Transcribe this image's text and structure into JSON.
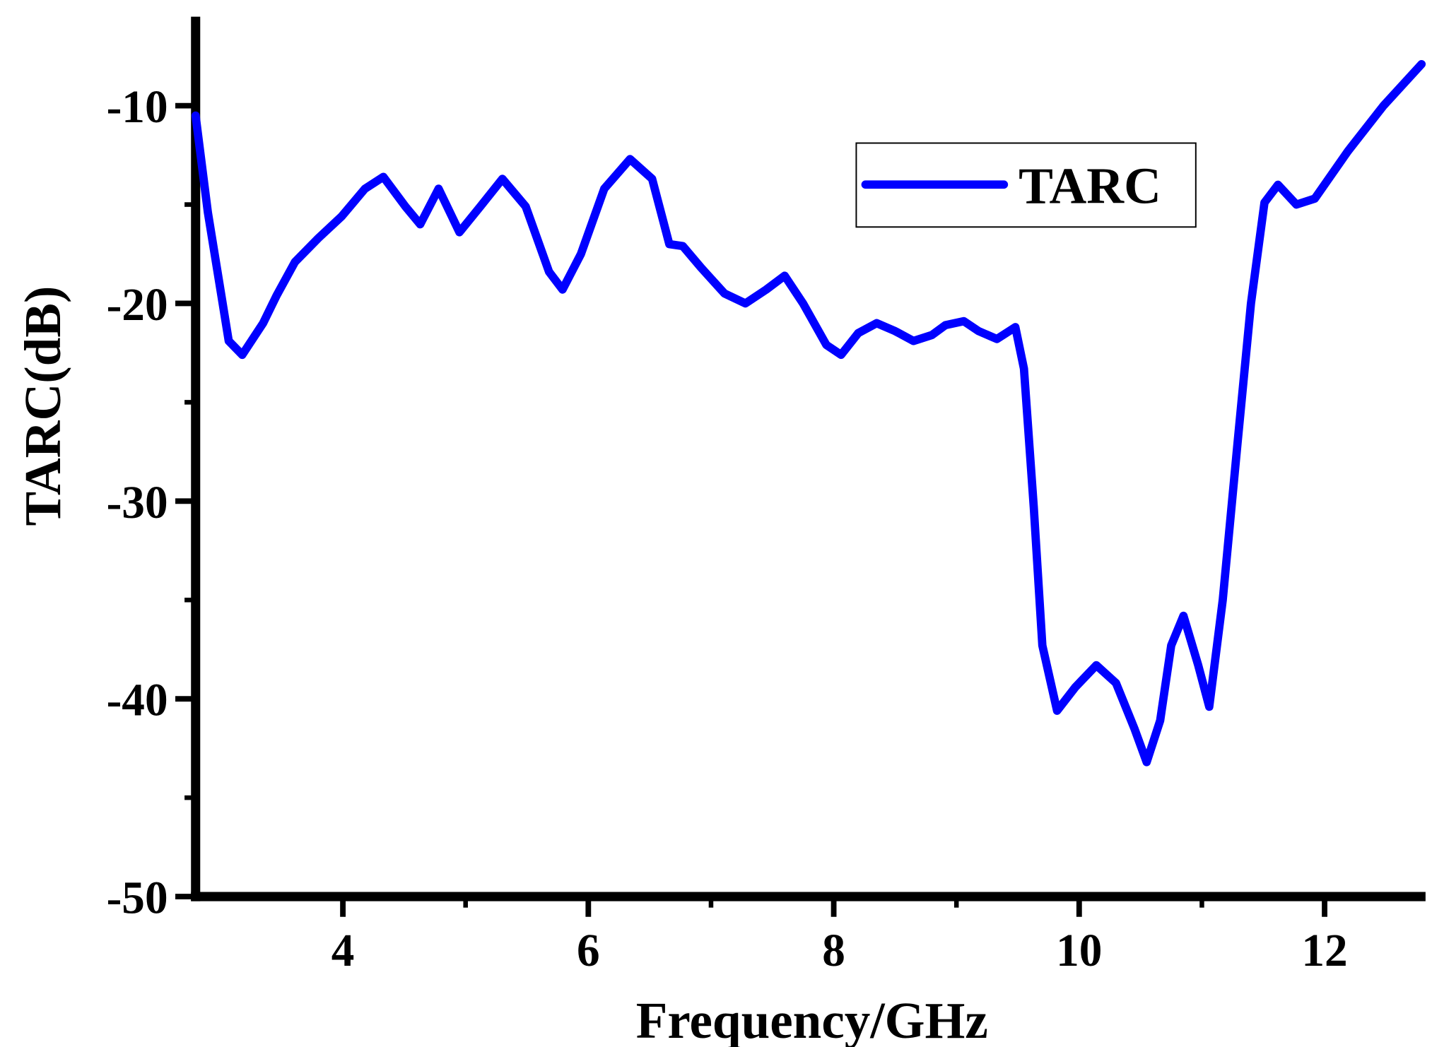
{
  "chart_data": {
    "type": "line",
    "x_label": "Frequency/GHz",
    "y_label": "TARC(dB)",
    "x": [
      2.8,
      2.9,
      3.01,
      3.07,
      3.18,
      3.35,
      3.46,
      3.61,
      3.8,
      3.99,
      4.18,
      4.33,
      4.51,
      4.63,
      4.78,
      4.95,
      5.12,
      5.3,
      5.49,
      5.68,
      5.79,
      5.94,
      6.13,
      6.34,
      6.52,
      6.66,
      6.77,
      6.92,
      7.11,
      7.28,
      7.45,
      7.6,
      7.75,
      7.94,
      8.06,
      8.2,
      8.35,
      8.5,
      8.65,
      8.8,
      8.91,
      9.06,
      9.18,
      9.33,
      9.48,
      9.55,
      9.63,
      9.7,
      9.82,
      9.97,
      10.14,
      10.3,
      10.45,
      10.55,
      10.66,
      10.75,
      10.85,
      10.97,
      11.06,
      11.17,
      11.29,
      11.4,
      11.51,
      11.62,
      11.77,
      11.92,
      12.19,
      12.48,
      12.79
    ],
    "series": [
      {
        "name": "TARC",
        "color": "#0000ff",
        "values": [
          -10.5,
          -15.4,
          -19.6,
          -21.9,
          -22.6,
          -21,
          -19.6,
          -17.9,
          -16.7,
          -15.6,
          -14.2,
          -13.6,
          -15.1,
          -16,
          -14.2,
          -16.4,
          -15.1,
          -13.7,
          -15.1,
          -18.4,
          -19.3,
          -17.5,
          -14.2,
          -12.7,
          -13.7,
          -17,
          -17.1,
          -18.2,
          -19.5,
          -20,
          -19.3,
          -18.6,
          -20,
          -22.1,
          -22.6,
          -21.5,
          -21,
          -21.4,
          -21.9,
          -21.6,
          -21.1,
          -20.9,
          -21.4,
          -21.8,
          -21.2,
          -23.3,
          -30.3,
          -37.3,
          -40.6,
          -39.4,
          -38.3,
          -39.2,
          -41.5,
          -43.2,
          -41.1,
          -37.3,
          -35.8,
          -38.3,
          -40.4,
          -35,
          -27.1,
          -20,
          -14.9,
          -14,
          -15,
          -14.7,
          -12.3,
          -10,
          -7.9
        ]
      }
    ],
    "xlim": [
      2.8,
      12.8
    ],
    "ylim": [
      -50,
      -5.5
    ],
    "xticks": [
      4,
      6,
      8,
      10,
      12
    ],
    "yticks": [
      -50,
      -40,
      -30,
      -20,
      -10
    ],
    "legend": "upper-right"
  }
}
